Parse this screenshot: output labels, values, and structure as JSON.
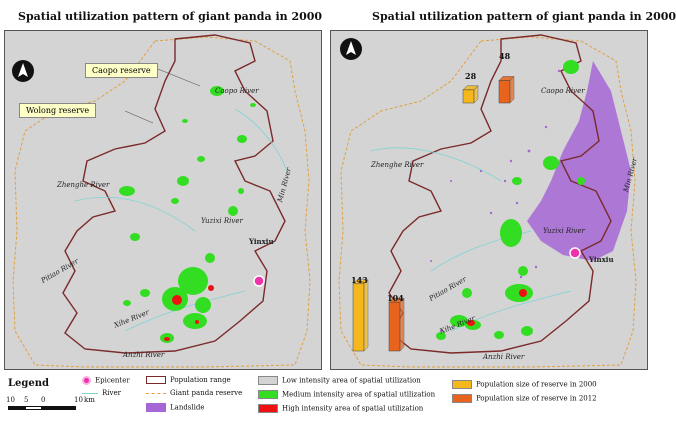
{
  "left_panel": {
    "title": "Spatial utilization pattern of giant panda in 2000",
    "callouts": [
      "Caopo reserve",
      "Wolong reserve"
    ],
    "rivers": [
      "Caopo River",
      "Min River",
      "Zhenghe River",
      "Yuzixi River",
      "Pitiao River",
      "Xihe River",
      "Anzhi River"
    ],
    "place": "Yinxiu"
  },
  "right_panel": {
    "title": "Spatial utilization pattern of giant panda in 2000",
    "rivers": [
      "Caopo River",
      "Min River",
      "Zhenghe River",
      "Yuzixi River",
      "Pitiao River",
      "Xihe River",
      "Anzhi River"
    ],
    "place": "Yinxiu",
    "population_bars": {
      "caopo": {
        "y2000": 28,
        "y2012": 48
      },
      "wolong": {
        "y2000": 143,
        "y2012": 104
      }
    }
  },
  "legend": {
    "title": "Legend",
    "epicenter": "Epicenter",
    "river": "River",
    "population_range": "Population range",
    "giant_panda_reserve": "Giant panda reserve",
    "landslide": "Landslide",
    "low_intensity": "Low intensity area of spatial utilization",
    "medium_intensity": "Medium intensity area of spatial utilization",
    "high_intensity": "High intensity area of spatial utilization",
    "pop_2000": "Population size of  reserve in 2000",
    "pop_2012": "Population size of  reserve in 2012",
    "scale_ticks": [
      "10",
      "5",
      "0",
      "10"
    ],
    "scale_unit": "km"
  },
  "colors": {
    "low": "#d4d4d4",
    "medium": "#33dd22",
    "high": "#ee1111",
    "landslide": "#a666d6",
    "range": "#7a2a2a",
    "reserve": "#e0a040",
    "river": "#7fd3d3",
    "epicenter": "#ee33aa",
    "bar2000": "#f4b81c",
    "bar2012": "#e8641c"
  }
}
